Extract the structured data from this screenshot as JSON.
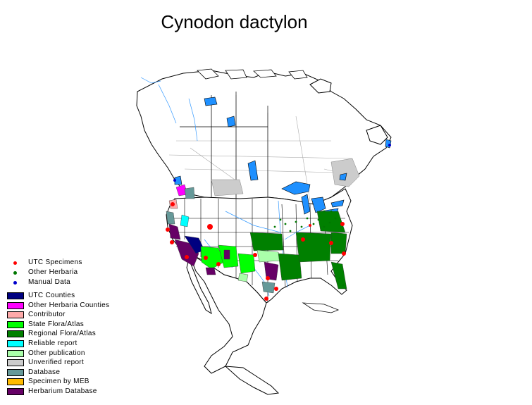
{
  "title": "Cynodon dactylon",
  "legend": {
    "points": [
      {
        "label": "UTC Specimens",
        "color": "#ff0000"
      },
      {
        "label": "Other Herbaria",
        "color": "#007700"
      },
      {
        "label": "Manual Data",
        "color": "#0000cc"
      }
    ],
    "swatches": [
      {
        "label": "UTC Counties",
        "color": "#000080"
      },
      {
        "label": "Other Herbaria Counties",
        "color": "#ff00ff"
      },
      {
        "label": "Contributor",
        "color": "#ffaaaa"
      },
      {
        "label": "State Flora/Atlas",
        "color": "#00ff00"
      },
      {
        "label": "Regional Flora/Atlas",
        "color": "#008000"
      },
      {
        "label": "Reliable report",
        "color": "#00ffff"
      },
      {
        "label": "Other publication",
        "color": "#aaffaa"
      },
      {
        "label": "Unverified report",
        "color": "#cccccc"
      },
      {
        "label": "Database",
        "color": "#669999"
      },
      {
        "label": "Specimen by MEB",
        "color": "#ffbb00"
      },
      {
        "label": "Herbarium Database",
        "color": "#660066"
      }
    ]
  },
  "map_colors": {
    "water": "#1e90ff",
    "rivers": "#3399ff",
    "border": "#000000",
    "county_lines": "#aaaaaa"
  }
}
